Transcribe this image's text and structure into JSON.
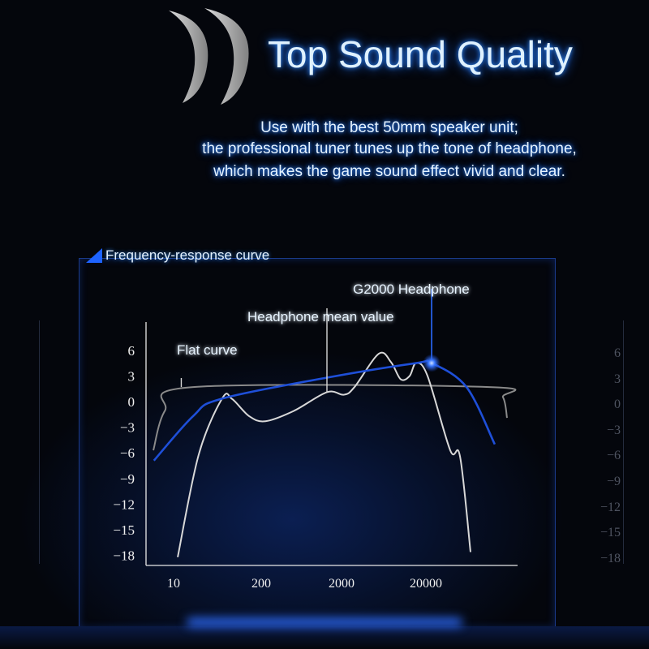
{
  "header": {
    "title": "Top Sound Quality",
    "subtitle_lines": [
      "Use with the best 50mm speaker unit;",
      "the professional tuner tunes up the tone of headphone,",
      "which makes the game sound effect vivid and clear."
    ]
  },
  "panel": {
    "title": "Frequency-response curve"
  },
  "colors": {
    "accent": "#1e63ff",
    "text_glow": "#2f8cff",
    "flat": "#8a8a8a",
    "mean": "#d8d8d8",
    "g2000": "#1e4fd8"
  },
  "chart_data": {
    "type": "line",
    "title": "Frequency-response curve",
    "xlabel": "",
    "ylabel": "",
    "x_scale": "log (uneven)",
    "x_ticks": [
      10,
      200,
      2000,
      20000
    ],
    "x_tick_labels": [
      "10",
      "200",
      "2000",
      "20000"
    ],
    "y_ticks": [
      6,
      3,
      0,
      -3,
      -6,
      -9,
      -12,
      -15,
      -18
    ],
    "y_tick_labels": [
      "6",
      "3",
      "0",
      "−3",
      "−6",
      "−9",
      "−12",
      "−15",
      "−18"
    ],
    "ylim": [
      -18,
      6
    ],
    "grid": false,
    "legend": "callout labels",
    "series": [
      {
        "name": "Flat curve",
        "x": [
          5,
          7.4,
          19.5,
          112500,
          164000,
          183000
        ],
        "y": [
          -5.7,
          -1.1,
          1.7,
          1.7,
          0.5,
          -1.9
        ]
      },
      {
        "name": "Headphone mean value",
        "x": [
          11.5,
          23.6,
          53,
          74,
          132,
          225,
          507,
          1316,
          2134,
          2850,
          5540,
          7730,
          10070,
          12840,
          15340,
          20900,
          38840,
          50700,
          67600
        ],
        "y": [
          -18.2,
          -6.2,
          0.4,
          0.3,
          -1.7,
          -2.3,
          -1.1,
          1.1,
          0.8,
          1.7,
          5.6,
          4.6,
          2.6,
          3.0,
          4.5,
          3.0,
          -5.7,
          -6.4,
          -17.6
        ]
      },
      {
        "name": "G2000 Headphone",
        "x": [
          5.1,
          19.5,
          50,
          1316,
          15340,
          23370,
          60500,
          131000
        ],
        "y": [
          -6.9,
          -1.7,
          0.3,
          2.8,
          4.5,
          4.5,
          1.7,
          -5.0
        ]
      }
    ],
    "annotations": [
      {
        "text": "Flat curve",
        "x": 13,
        "y": 1.7
      },
      {
        "text": "Headphone mean value",
        "x": 1316,
        "y": 1.1
      },
      {
        "text": "G2000 Headphone",
        "x": 23370,
        "y": 4.5
      }
    ]
  }
}
